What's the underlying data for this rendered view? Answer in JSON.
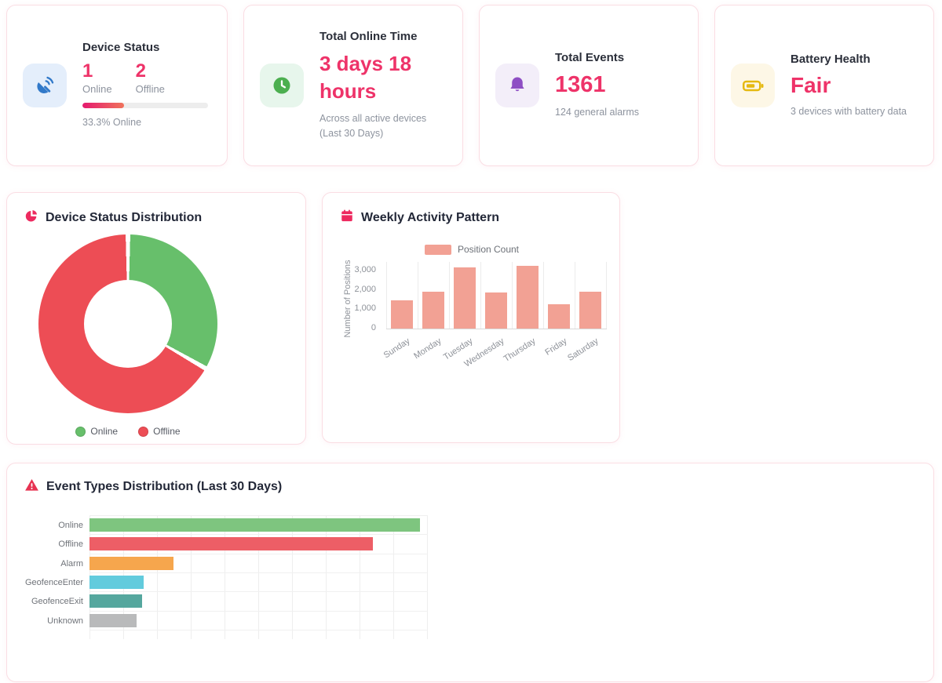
{
  "accent_color": "#ee3369",
  "stat_cards": [
    {
      "title": "Device Status",
      "icon": "satellite-dish-icon",
      "icon_color": "#3179c9",
      "icon_bg": "#e4eefb",
      "online_value": "1",
      "online_label": "Online",
      "offline_value": "2",
      "offline_label": "Offline",
      "progress_pct": 33.3,
      "progress_label": "33.3% Online"
    },
    {
      "title": "Total Online Time",
      "icon": "clock-icon",
      "icon_color": "#4caf50",
      "icon_bg": "#e7f6ec",
      "value": "3 days 18 hours",
      "subtitle": "Across all active devices (Last 30 Days)"
    },
    {
      "title": "Total Events",
      "icon": "bell-icon",
      "icon_color": "#8e4ec4",
      "icon_bg": "#f3eef9",
      "value": "1361",
      "subtitle": "124 general alarms"
    },
    {
      "title": "Battery Health",
      "icon": "battery-icon",
      "icon_color": "#e5b910",
      "icon_bg": "#fdf7e6",
      "value": "Fair",
      "subtitle": "3 devices with battery data"
    }
  ],
  "donut_card": {
    "title": "Device Status Distribution",
    "icon": "pie-chart-icon"
  },
  "weekly_card": {
    "title": "Weekly Activity Pattern",
    "icon": "calendar-icon"
  },
  "events_card": {
    "title": "Event Types Distribution (Last 30 Days)",
    "icon": "warning-icon"
  },
  "chart_data": [
    {
      "type": "pie",
      "title": "Device Status Distribution",
      "donut": true,
      "labels": [
        "Online",
        "Offline"
      ],
      "values": [
        33.3,
        66.7
      ],
      "colors": [
        "#67bf6b",
        "#ed4d55"
      ],
      "legend_position": "bottom"
    },
    {
      "type": "bar",
      "title": "Weekly Activity Pattern",
      "series_name": "Position Count",
      "categories": [
        "Sunday",
        "Monday",
        "Tuesday",
        "Wednesday",
        "Thursday",
        "Friday",
        "Saturday"
      ],
      "values": [
        1450,
        1900,
        3150,
        1880,
        3250,
        1250,
        1920
      ],
      "bar_color": "#f2a194",
      "xlabel": "",
      "ylabel": "Number of Positions",
      "yticks": [
        0,
        1000,
        2000,
        3000
      ],
      "ylim": [
        0,
        3500
      ],
      "grid": true,
      "legend_position": "top"
    },
    {
      "type": "bar",
      "orientation": "horizontal",
      "title": "Event Types Distribution (Last 30 Days)",
      "categories": [
        "Online",
        "Offline",
        "Alarm",
        "GeofenceEnter",
        "GeofenceExit",
        "Unknown"
      ],
      "values": [
        490,
        420,
        124,
        80,
        78,
        70
      ],
      "colors": [
        "#7ec57f",
        "#ed5e66",
        "#f6a64d",
        "#62cbdd",
        "#55a79e",
        "#b9babb"
      ],
      "xlim": [
        0,
        500
      ],
      "grid": true
    }
  ]
}
